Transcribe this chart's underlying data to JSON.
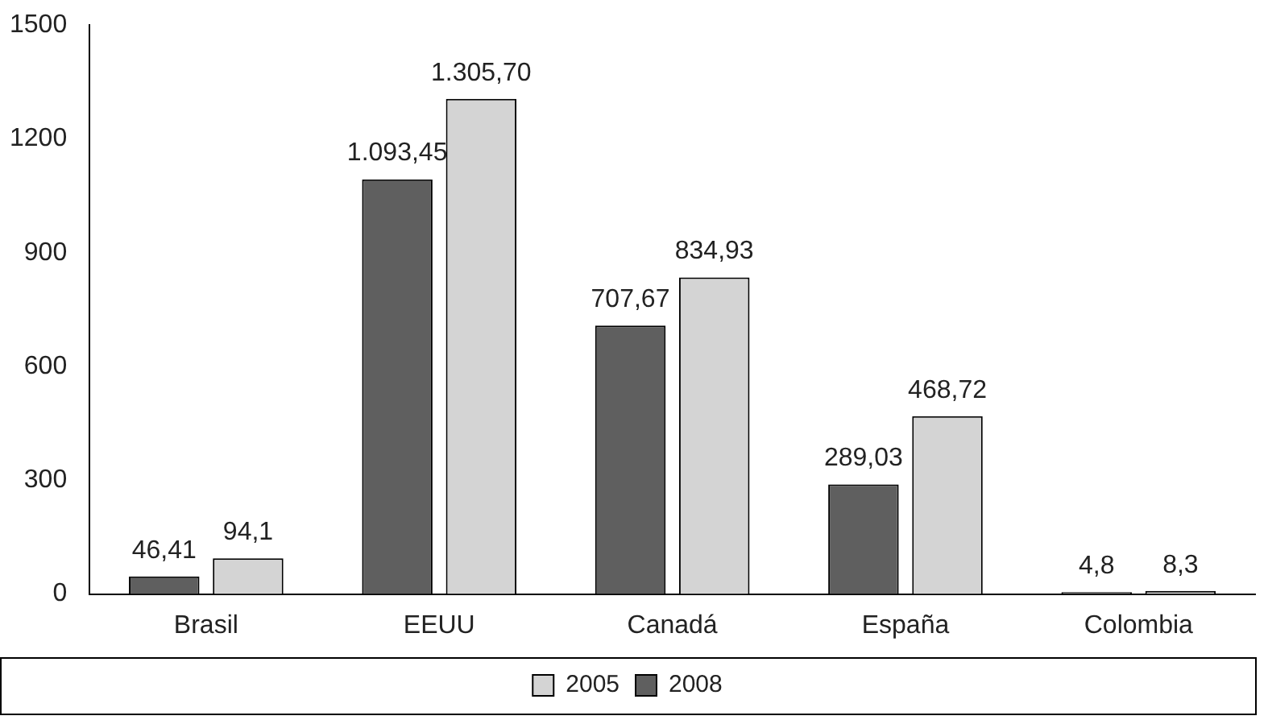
{
  "chart_data": {
    "type": "bar",
    "categories": [
      "Brasil",
      "EEUU",
      "Canadá",
      "España",
      "Colombia"
    ],
    "series": [
      {
        "name": "2008",
        "color": "#5f5f5f",
        "values": [
          46.41,
          1093.45,
          707.67,
          289.03,
          4.8
        ],
        "value_labels": [
          "46,41",
          "1.093,45",
          "707,67",
          "289,03",
          "4,8"
        ]
      },
      {
        "name": "2005",
        "color": "#d4d4d4",
        "values": [
          94.1,
          1305.7,
          834.93,
          468.72,
          8.3
        ],
        "value_labels": [
          "94,1",
          "1.305,70",
          "834,93",
          "468,72",
          "8,3"
        ]
      }
    ],
    "ylim": [
      0,
      1500
    ],
    "yticks": [
      0,
      300,
      600,
      900,
      1200,
      1500
    ],
    "grid": false,
    "legend": "bottom"
  }
}
